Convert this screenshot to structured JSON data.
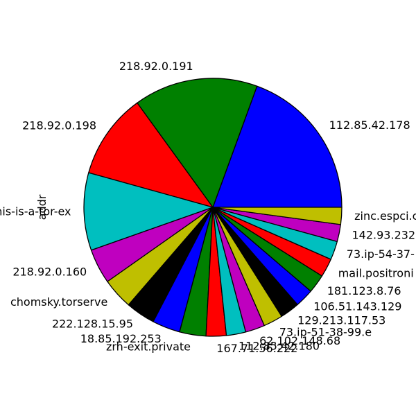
{
  "chart_data": {
    "type": "pie",
    "ylabel": "addr",
    "start_angle_deg": 0,
    "direction": "counterclockwise",
    "slices": [
      {
        "label": "112.85.42.178",
        "value": 20.0,
        "color": "#0000ff"
      },
      {
        "label": "218.92.0.191",
        "value": 16.0,
        "color": "#008000"
      },
      {
        "label": "218.92.0.198",
        "value": 11.0,
        "color": "#ff0000"
      },
      {
        "label": "this-is-a-tor-ex",
        "value": 10.0,
        "color": "#00bfbf"
      },
      {
        "label": "218.92.0.160",
        "value": 4.5,
        "color": "#bf00bf"
      },
      {
        "label": "chomsky.torserve",
        "value": 4.0,
        "color": "#bfbf00"
      },
      {
        "label": "222.128.15.95",
        "value": 3.8,
        "color": "#000000"
      },
      {
        "label": "18.85.192.253",
        "value": 3.6,
        "color": "#0000ff"
      },
      {
        "label": "zrh-exit.private",
        "value": 3.4,
        "color": "#008000"
      },
      {
        "label": "167.71.56.222",
        "value": 2.6,
        "color": "#ff0000"
      },
      {
        "label": "112.85.42.180",
        "value": 2.5,
        "color": "#00bfbf"
      },
      {
        "label": "62.102.148.68",
        "value": 2.5,
        "color": "#bf00bf"
      },
      {
        "label": "73.ip-51-38-99.e",
        "value": 2.5,
        "color": "#bfbf00"
      },
      {
        "label": "129.213.117.53",
        "value": 2.5,
        "color": "#000000"
      },
      {
        "label": "106.51.143.129",
        "value": 2.4,
        "color": "#0000ff"
      },
      {
        "label": "181.123.8.76",
        "value": 2.4,
        "color": "#008000"
      },
      {
        "label": "mail.positroni",
        "value": 2.4,
        "color": "#ff0000"
      },
      {
        "label": "73.ip-54-37-",
        "value": 2.4,
        "color": "#00bfbf"
      },
      {
        "label": "142.93.232",
        "value": 2.2,
        "color": "#bf00bf"
      },
      {
        "label": "zinc.espci.c",
        "value": 2.2,
        "color": "#bfbf00"
      }
    ]
  }
}
